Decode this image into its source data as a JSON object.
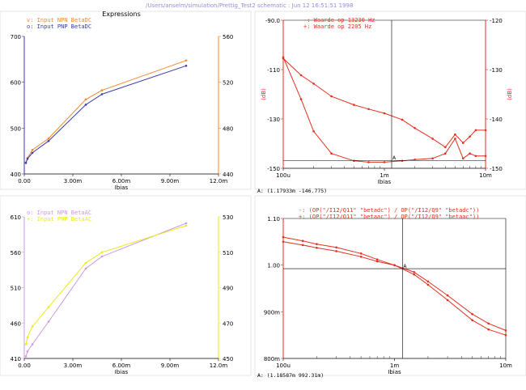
{
  "window": {
    "title": "/Users/anselm/simulation/Prettig_Test2 schematic : Jun 12 16:51:51 1998"
  },
  "colors": {
    "orange": "#f0882a",
    "blue": "#3a3aa8",
    "violet": "#cc99dd",
    "yellow": "#eaea1a",
    "red": "#e03020",
    "black": "#000000"
  },
  "chart_data": [
    {
      "id": "top-left",
      "type": "line",
      "title": "Expressions",
      "xlabel": "Ibias",
      "x_ticks": [
        "0.00",
        "3.00m",
        "6.00m",
        "9.00m",
        "12.0m"
      ],
      "x_range": [
        0,
        0.012
      ],
      "left_axis": {
        "ticks": [
          "400",
          "500",
          "600",
          "700"
        ],
        "range": [
          400,
          700
        ],
        "color": "#3a3aa8"
      },
      "right_axis": {
        "ticks": [
          "440",
          "480",
          "520",
          "560"
        ],
        "range": [
          440,
          560
        ],
        "color": "#f0882a"
      },
      "legend": [
        {
          "marker": "v:",
          "name": "Input NPN BetaDC",
          "color": "#f0882a"
        },
        {
          "marker": "o:",
          "name": "Input PNP BetaDC",
          "color": "#3a3aa8"
        }
      ],
      "series": [
        {
          "name": "Input NPN BetaDC",
          "axis": "right",
          "color": "#f0882a",
          "x": [
            0.0001,
            0.0002,
            0.0005,
            0.0015,
            0.0038,
            0.0048,
            0.01
          ],
          "y": [
            450,
            454,
            461,
            471,
            505,
            513,
            539
          ]
        },
        {
          "name": "Input PNP BetaDC",
          "axis": "left",
          "color": "#3a3aa8",
          "x": [
            0.0001,
            0.0002,
            0.0005,
            0.0015,
            0.0038,
            0.0048,
            0.01
          ],
          "y": [
            424,
            433,
            446,
            472,
            551,
            574,
            636
          ]
        }
      ],
      "cursor": {
        "label": "",
        "x": null
      }
    },
    {
      "id": "top-right",
      "type": "line",
      "title": "",
      "xlabel": "Ibias",
      "x_scale": "log",
      "x_ticks": [
        "100u",
        "1m",
        "10m"
      ],
      "x_range": [
        0.0001,
        0.01
      ],
      "left_axis": {
        "ticks": [
          "-90.0",
          "-110",
          "-130",
          "-150"
        ],
        "range": [
          -150,
          -90
        ],
        "label": "(dB)",
        "color": "#e03020"
      },
      "right_axis": {
        "ticks": [
          "-120",
          "-130",
          "-140",
          "-150"
        ],
        "range": [
          -150,
          -115
        ],
        "label": "(dB)",
        "color": "#e03020"
      },
      "legend": [
        {
          "marker": "-:",
          "name": "Waarde op 13230 Hz",
          "color": "#e03020"
        },
        {
          "marker": "+:",
          "name": "Waarde op 2205 Hz",
          "color": "#e03020"
        }
      ],
      "series": [
        {
          "name": "Waarde op 13230 Hz",
          "axis": "right",
          "color": "#e03020",
          "x": [
            0.0001,
            0.00015,
            0.0002,
            0.0003,
            0.0005,
            0.0007,
            0.001,
            0.0015,
            0.002,
            0.003,
            0.004,
            0.005,
            0.006,
            0.007,
            0.008,
            0.01
          ],
          "y": [
            -124,
            -128,
            -130,
            -133,
            -135,
            -136,
            -137,
            -138.5,
            -140.5,
            -143,
            -145,
            -142,
            -144,
            -142.5,
            -141,
            -141
          ]
        },
        {
          "name": "Waarde op 2205 Hz",
          "axis": "left",
          "color": "#e03020",
          "x": [
            0.0001,
            0.00015,
            0.0002,
            0.0003,
            0.0005,
            0.0007,
            0.001,
            0.0015,
            0.002,
            0.003,
            0.004,
            0.005,
            0.006,
            0.007,
            0.008,
            0.01
          ],
          "y": [
            -105,
            -122,
            -135,
            -144,
            -147,
            -147.5,
            -147.5,
            -147,
            -146.5,
            -146,
            -144,
            -138,
            -146,
            -144,
            -145,
            -145
          ]
        }
      ],
      "cursor": {
        "label": "A: (1.17933m -146.775)",
        "x": 0.00118,
        "y": -146.8
      }
    },
    {
      "id": "bottom-left",
      "type": "line",
      "title": "",
      "xlabel": "Ibias",
      "x_ticks": [
        "0.00",
        "3.00m",
        "6.00m",
        "9.00m",
        "12.0m"
      ],
      "x_range": [
        0,
        0.012
      ],
      "left_axis": {
        "ticks": [
          "410",
          "460",
          "510",
          "560",
          "610"
        ],
        "range": [
          410,
          610
        ],
        "color": "#cc99dd"
      },
      "right_axis": {
        "ticks": [
          "450",
          "470",
          "490",
          "510",
          "530"
        ],
        "range": [
          450,
          530
        ],
        "color": "#eaea1a"
      },
      "legend": [
        {
          "marker": "o:",
          "name": "Input NPN BetaAC",
          "color": "#cc99dd"
        },
        {
          "marker": "+:",
          "name": "Input PNP BetaAC",
          "color": "#eaea1a"
        }
      ],
      "series": [
        {
          "name": "Input NPN BetaAC",
          "axis": "left",
          "color": "#cc99dd",
          "x": [
            0.0001,
            0.0002,
            0.0005,
            0.0015,
            0.0038,
            0.0048,
            0.01
          ],
          "y": [
            413,
            420,
            430,
            462,
            537,
            554,
            601
          ]
        },
        {
          "name": "Input PNP BetaAC",
          "axis": "right",
          "color": "#eaea1a",
          "x": [
            0.0001,
            0.0002,
            0.0005,
            0.0015,
            0.0038,
            0.0048,
            0.01
          ],
          "y": [
            458,
            462,
            468,
            479,
            504,
            510,
            525
          ]
        }
      ],
      "cursor": {
        "label": "",
        "x": null
      }
    },
    {
      "id": "bottom-right",
      "type": "line",
      "title": "",
      "xlabel": "Ibias",
      "x_scale": "log",
      "x_ticks": [
        "100u",
        "1m",
        "10m"
      ],
      "x_range": [
        0.0001,
        0.01
      ],
      "left_axis": {
        "ticks": [
          "1.10",
          "1.00",
          "900m",
          "800m"
        ],
        "range": [
          0.8,
          1.1
        ],
        "color": "#e03020"
      },
      "right_axis": null,
      "legend": [
        {
          "marker": "-:",
          "name": "(OP(\"/I12/Q11\" \"betadc\") / OP(\"/I12/Q9\" \"betadc\"))",
          "color": "#e03020"
        },
        {
          "marker": "+:",
          "name": "(OP(\"/I12/Q11\" \"betaac\") / OP(\"/I12/Q9\" \"betaac\"))",
          "color": "#e03020"
        }
      ],
      "series": [
        {
          "name": "(OP(\"/I12/Q11\" \"betadc\") / OP(\"/I12/Q9\" \"betadc\"))",
          "axis": "left",
          "color": "#e03020",
          "x": [
            0.0001,
            0.00015,
            0.0002,
            0.0003,
            0.0005,
            0.0007,
            0.001,
            0.0015,
            0.002,
            0.003,
            0.005,
            0.007,
            0.01
          ],
          "y": [
            1.06,
            1.052,
            1.045,
            1.038,
            1.025,
            1.012,
            1.0,
            0.985,
            0.965,
            0.935,
            0.895,
            0.875,
            0.86
          ]
        },
        {
          "name": "(OP(\"/I12/Q11\" \"betaac\") / OP(\"/I12/Q9\" \"betaac\"))",
          "axis": "left",
          "color": "#e03020",
          "x": [
            0.0001,
            0.00015,
            0.0002,
            0.0003,
            0.0005,
            0.0007,
            0.001,
            0.0015,
            0.002,
            0.003,
            0.005,
            0.007,
            0.01
          ],
          "y": [
            1.05,
            1.043,
            1.037,
            1.03,
            1.018,
            1.008,
            1.0,
            0.98,
            0.958,
            0.925,
            0.882,
            0.862,
            0.85
          ]
        }
      ],
      "cursor": {
        "label": "A: (1.18587m 992.31m)",
        "x": 0.00118,
        "y": 0.99231
      }
    }
  ]
}
